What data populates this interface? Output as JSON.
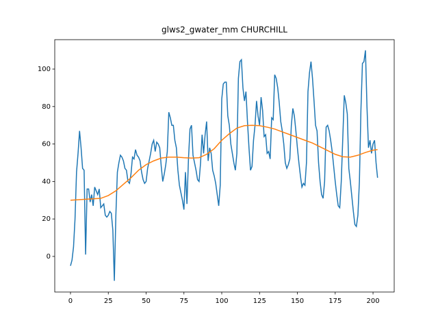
{
  "chart_data": {
    "type": "line",
    "title": "glws2_gwater_mm CHURCHILL",
    "xlim": [
      -10.4,
      214
    ],
    "ylim": [
      -19,
      115.7
    ],
    "xticks": [
      0,
      25,
      50,
      75,
      100,
      125,
      150,
      175,
      200
    ],
    "yticks": [
      0,
      20,
      40,
      60,
      80,
      100
    ],
    "series": [
      {
        "color": "#1f77b4",
        "x": [
          0,
          1,
          2,
          3,
          4,
          5,
          6,
          7,
          8,
          9,
          10,
          11,
          12,
          13,
          14,
          15,
          16,
          17,
          18,
          19,
          20,
          21,
          22,
          23,
          24,
          25,
          26,
          27,
          28,
          29,
          30,
          31,
          32,
          33,
          34,
          35,
          36,
          37,
          38,
          39,
          40,
          41,
          42,
          43,
          44,
          45,
          46,
          47,
          48,
          49,
          50,
          51,
          52,
          53,
          54,
          55,
          56,
          57,
          58,
          59,
          60,
          61,
          62,
          63,
          64,
          65,
          66,
          67,
          68,
          69,
          70,
          71,
          72,
          73,
          74,
          75,
          76,
          77,
          78,
          79,
          80,
          81,
          82,
          83,
          84,
          85,
          86,
          87,
          88,
          89,
          90,
          91,
          92,
          93,
          94,
          95,
          96,
          97,
          98,
          99,
          100,
          101,
          102,
          103,
          104,
          105,
          106,
          107,
          108,
          109,
          110,
          111,
          112,
          113,
          114,
          115,
          116,
          117,
          118,
          119,
          120,
          121,
          122,
          123,
          124,
          125,
          126,
          127,
          128,
          129,
          130,
          131,
          132,
          133,
          134,
          135,
          136,
          137,
          138,
          139,
          140,
          141,
          142,
          143,
          144,
          145,
          146,
          147,
          148,
          149,
          150,
          151,
          152,
          153,
          154,
          155,
          156,
          157,
          158,
          159,
          160,
          161,
          162,
          163,
          164,
          165,
          166,
          167,
          168,
          169,
          170,
          171,
          172,
          173,
          174,
          175,
          176,
          177,
          178,
          179,
          180,
          181,
          182,
          183,
          184,
          185,
          186,
          187,
          188,
          189,
          190,
          191,
          192,
          193,
          194,
          195,
          196,
          197,
          198,
          199,
          200,
          201,
          202,
          203
        ],
        "values": [
          -5,
          -2,
          5,
          20,
          45,
          55,
          67,
          58,
          47,
          46,
          1,
          36,
          36,
          29,
          33,
          27,
          37,
          35,
          33,
          36,
          26,
          27,
          28,
          22,
          21,
          22,
          24,
          23,
          14,
          -13,
          22,
          45,
          50,
          54,
          53,
          51,
          47,
          46,
          40,
          39,
          44,
          53,
          52,
          57,
          54,
          53,
          51,
          45,
          41,
          39,
          40,
          47,
          51,
          55,
          60,
          62,
          56,
          61,
          60,
          58,
          48,
          40,
          44,
          49,
          56,
          77,
          74,
          70,
          70,
          62,
          58,
          46,
          38,
          34,
          30,
          25,
          45,
          28,
          52,
          68,
          70,
          54,
          50,
          46,
          41,
          40,
          50,
          65,
          55,
          65,
          72,
          51,
          58,
          55,
          46,
          43,
          39,
          33,
          27,
          38,
          84,
          92,
          93,
          93,
          75,
          70,
          60,
          55,
          50,
          46,
          55,
          95,
          104,
          105,
          90,
          83,
          88,
          72,
          58,
          46,
          48,
          62,
          70,
          83,
          75,
          70,
          85,
          78,
          64,
          65,
          55,
          56,
          52,
          74,
          73,
          97,
          95,
          90,
          82,
          72,
          67,
          60,
          50,
          47,
          49,
          52,
          70,
          79,
          75,
          67,
          58,
          50,
          43,
          37,
          39,
          38,
          50,
          88,
          98,
          104,
          95,
          83,
          70,
          67,
          50,
          40,
          33,
          31,
          40,
          69,
          70,
          67,
          62,
          56,
          48,
          40,
          33,
          27,
          26,
          40,
          63,
          86,
          82,
          76,
          47,
          40,
          32,
          24,
          17,
          16,
          22,
          40,
          78,
          103,
          104,
          110,
          80,
          58,
          62,
          55,
          60,
          62,
          50,
          42
        ]
      },
      {
        "color": "#ff7f0e",
        "x": [
          0,
          10,
          20,
          25,
          30,
          35,
          40,
          45,
          50,
          55,
          60,
          65,
          70,
          75,
          80,
          85,
          90,
          95,
          100,
          105,
          110,
          115,
          120,
          125,
          130,
          135,
          140,
          145,
          150,
          155,
          160,
          165,
          170,
          175,
          180,
          185,
          190,
          195,
          200,
          203
        ],
        "values": [
          30,
          30.5,
          31,
          32.5,
          35,
          38.5,
          42,
          46,
          49,
          51,
          52.5,
          53,
          53,
          52.7,
          52.5,
          52.7,
          54.5,
          57.5,
          62,
          65.5,
          68.5,
          69.8,
          70,
          69.8,
          69,
          68,
          66.5,
          65,
          63.5,
          62,
          60.5,
          58.5,
          56.5,
          54.5,
          53.2,
          53,
          54,
          55.5,
          56.7,
          57
        ]
      }
    ]
  }
}
